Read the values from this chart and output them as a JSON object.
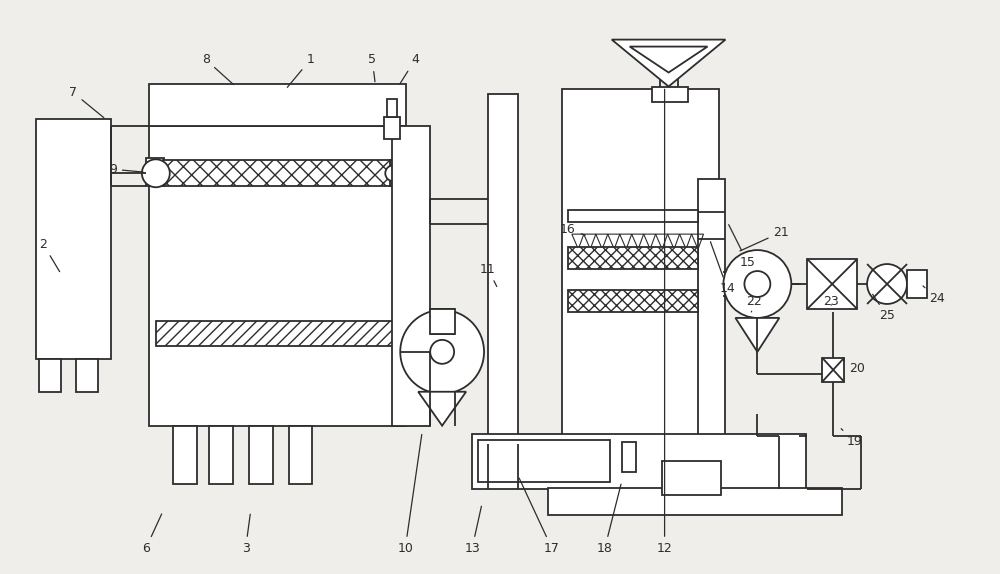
{
  "bg_color": "#f0eeea",
  "line_color": "#2d2d2d",
  "fig_width": 10.0,
  "fig_height": 5.74,
  "lw": 1.3,
  "labels": {
    "1": [
      3.1,
      5.15,
      2.85,
      4.85
    ],
    "2": [
      0.42,
      3.3,
      0.6,
      3.0
    ],
    "3": [
      2.45,
      0.25,
      2.5,
      0.62
    ],
    "4": [
      4.15,
      5.15,
      3.98,
      4.88
    ],
    "5": [
      3.72,
      5.15,
      3.75,
      4.9
    ],
    "6": [
      1.45,
      0.25,
      1.62,
      0.62
    ],
    "7": [
      0.72,
      4.82,
      1.05,
      4.55
    ],
    "8": [
      2.05,
      5.15,
      2.35,
      4.88
    ],
    "9": [
      1.12,
      4.05,
      1.45,
      4.02
    ],
    "10": [
      4.05,
      0.25,
      4.22,
      1.42
    ],
    "11": [
      4.88,
      3.05,
      4.98,
      2.85
    ],
    "12": [
      6.65,
      0.25,
      6.65,
      4.88
    ],
    "13": [
      4.72,
      0.25,
      4.82,
      0.7
    ],
    "14": [
      7.28,
      2.85,
      7.1,
      3.35
    ],
    "15": [
      7.48,
      3.12,
      7.28,
      3.52
    ],
    "16": [
      5.68,
      3.45,
      5.88,
      3.38
    ],
    "17": [
      5.52,
      0.25,
      5.18,
      0.98
    ],
    "18": [
      6.05,
      0.25,
      6.22,
      0.92
    ],
    "19": [
      8.55,
      1.32,
      8.42,
      1.45
    ],
    "20": [
      8.58,
      2.05,
      8.42,
      2.15
    ],
    "21": [
      7.82,
      3.42,
      7.38,
      3.22
    ],
    "22": [
      7.55,
      2.72,
      7.52,
      2.62
    ],
    "23": [
      8.32,
      2.72,
      8.32,
      2.66
    ],
    "24": [
      9.38,
      2.75,
      9.22,
      2.9
    ],
    "25": [
      8.88,
      2.58,
      8.72,
      2.82
    ]
  }
}
